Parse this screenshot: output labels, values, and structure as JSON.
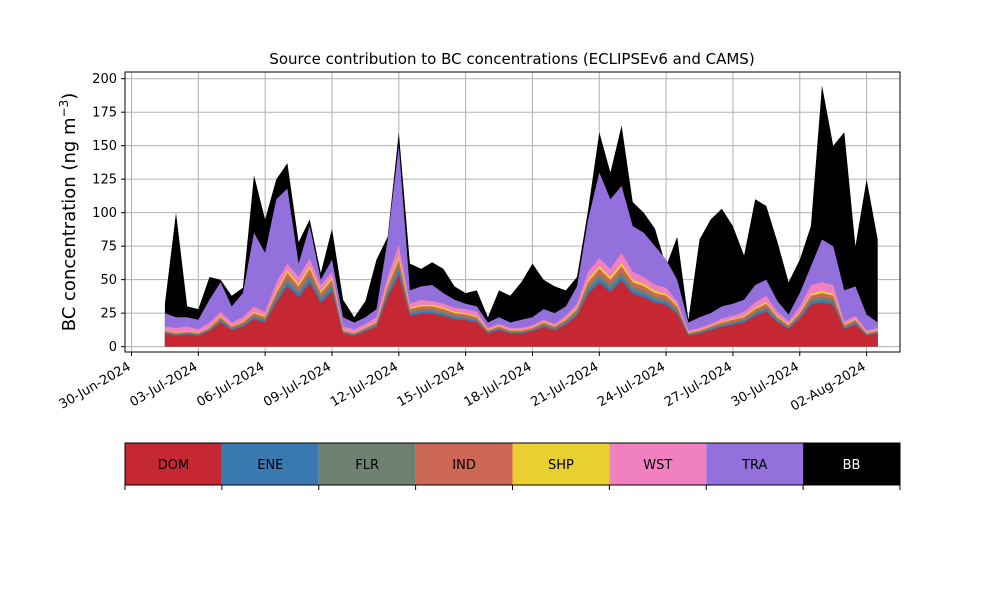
{
  "chart_data": {
    "type": "area",
    "stacked": true,
    "title": "Source contribution to BC concentrations (ECLIPSEv6 and CAMS)",
    "xlabel": "",
    "ylabel_main": "BC concentration (ng m",
    "ylabel_sup": "−3",
    "ylabel_close": ")",
    "ylim": [
      -4,
      205
    ],
    "xlim": [
      "2024-06-29T17:00",
      "2024-08-03T12:00"
    ],
    "grid": true,
    "x_ticks": [
      "30-Jun-2024",
      "03-Jul-2024",
      "06-Jul-2024",
      "09-Jul-2024",
      "12-Jul-2024",
      "15-Jul-2024",
      "18-Jul-2024",
      "21-Jul-2024",
      "24-Jul-2024",
      "27-Jul-2024",
      "30-Jul-2024",
      "02-Aug-2024"
    ],
    "y_ticks": [
      "0",
      "25",
      "50",
      "75",
      "100",
      "125",
      "150",
      "175",
      "200"
    ],
    "y_tick_values": [
      0,
      25,
      50,
      75,
      100,
      125,
      150,
      175,
      200
    ],
    "series_names": [
      "DOM",
      "ENE",
      "FLR",
      "IND",
      "SHP",
      "WST",
      "TRA",
      "BB"
    ],
    "colors": {
      "DOM": "#c62833",
      "ENE": "#3a78b0",
      "FLR": "#6e8070",
      "IND": "#cc6655",
      "SHP": "#e8d030",
      "WST": "#f080c0",
      "TRA": "#9370db",
      "BB": "#000000"
    },
    "x_day_offsets": [
      0,
      0.5,
      1,
      1.5,
      2,
      2.5,
      3,
      3.5,
      4,
      4.5,
      5,
      5.5,
      6,
      6.5,
      7,
      7.5,
      8,
      8.5,
      9,
      9.5,
      10,
      10.5,
      11,
      11.5,
      12,
      12.5,
      13,
      13.5,
      14,
      14.5,
      15,
      15.5,
      16,
      16.5,
      17,
      17.5,
      18,
      18.5,
      19,
      19.5,
      20,
      20.5,
      21,
      21.5,
      22,
      22.5,
      23,
      23.5,
      24,
      24.5,
      25,
      25.5,
      26,
      26.5,
      27,
      27.5,
      28,
      28.5,
      29,
      29.5,
      30,
      30.5,
      31,
      31.5,
      32
    ],
    "x_start": "2024-07-01T12:00",
    "x_values_note": "",
    "totals": {
      "DOM_plus_ENE_FLR_IND": [
        12,
        10,
        11,
        10,
        14,
        22,
        15,
        18,
        25,
        22,
        40,
        55,
        45,
        58,
        40,
        50,
        12,
        10,
        14,
        18,
        45,
        65,
        28,
        30,
        30,
        28,
        25,
        24,
        22,
        12,
        15,
        12,
        12,
        14,
        18,
        15,
        20,
        28,
        48,
        58,
        50,
        60,
        48,
        45,
        40,
        38,
        30,
        10,
        12,
        15,
        18,
        20,
        22,
        28,
        32,
        22,
        16,
        25,
        38,
        40,
        38,
        16,
        20,
        10,
        12
      ],
      "WST_top": [
        15,
        14,
        15,
        13,
        18,
        26,
        18,
        22,
        30,
        26,
        48,
        62,
        52,
        66,
        46,
        56,
        15,
        13,
        17,
        22,
        52,
        76,
        32,
        35,
        34,
        32,
        29,
        28,
        26,
        14,
        17,
        14,
        14,
        16,
        20,
        17,
        23,
        32,
        56,
        66,
        58,
        70,
        56,
        52,
        46,
        44,
        34,
        12,
        14,
        17,
        21,
        23,
        26,
        33,
        38,
        26,
        19,
        30,
        46,
        48,
        46,
        19,
        23,
        12,
        14
      ],
      "TRA_top": [
        25,
        22,
        22,
        20,
        35,
        48,
        30,
        40,
        85,
        70,
        110,
        118,
        62,
        90,
        50,
        65,
        22,
        18,
        22,
        28,
        80,
        150,
        42,
        45,
        46,
        40,
        35,
        32,
        30,
        18,
        22,
        18,
        20,
        22,
        28,
        25,
        30,
        45,
        95,
        130,
        110,
        120,
        90,
        85,
        75,
        65,
        50,
        18,
        22,
        25,
        30,
        32,
        35,
        46,
        50,
        34,
        24,
        40,
        60,
        80,
        75,
        42,
        45,
        24,
        18
      ],
      "BB_top": [
        32,
        100,
        30,
        28,
        52,
        50,
        38,
        44,
        128,
        95,
        125,
        137,
        78,
        95,
        55,
        88,
        35,
        22,
        34,
        65,
        82,
        160,
        62,
        58,
        63,
        58,
        45,
        40,
        42,
        22,
        42,
        38,
        48,
        62,
        50,
        45,
        42,
        52,
        102,
        160,
        130,
        165,
        108,
        100,
        88,
        60,
        82,
        20,
        80,
        95,
        103,
        90,
        68,
        110,
        105,
        78,
        48,
        65,
        90,
        195,
        150,
        160,
        75,
        125,
        80
      ]
    }
  },
  "legend": {
    "items": [
      {
        "label": "DOM",
        "color": "#c62833",
        "text_color": "#000000"
      },
      {
        "label": "ENE",
        "color": "#3a78b0",
        "text_color": "#000000"
      },
      {
        "label": "FLR",
        "color": "#6e8070",
        "text_color": "#000000"
      },
      {
        "label": "IND",
        "color": "#cc6655",
        "text_color": "#000000"
      },
      {
        "label": "SHP",
        "color": "#e8d030",
        "text_color": "#000000"
      },
      {
        "label": "WST",
        "color": "#f080c0",
        "text_color": "#000000"
      },
      {
        "label": "TRA",
        "color": "#9370db",
        "text_color": "#000000"
      },
      {
        "label": "BB",
        "color": "#000000",
        "text_color": "#ffffff"
      }
    ]
  }
}
